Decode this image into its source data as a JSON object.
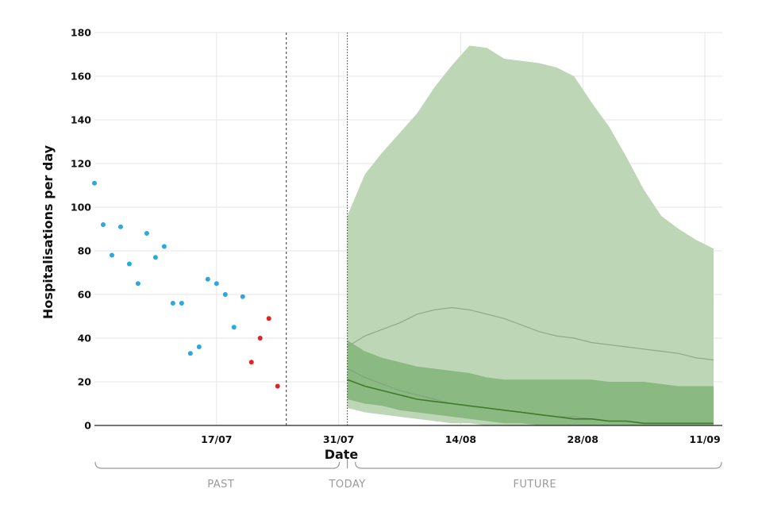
{
  "chart_data": {
    "type": "scatter",
    "xlabel": "Date",
    "ylabel": "Hospitalisations per day",
    "ylim": [
      0,
      180
    ],
    "xlim": [
      "2021-07-03",
      "2021-09-13"
    ],
    "grid": true,
    "x_ticks": [
      {
        "date": "2021-07-17",
        "label": "17/07"
      },
      {
        "date": "2021-07-31",
        "label": "31/07"
      },
      {
        "date": "2021-08-14",
        "label": "14/08"
      },
      {
        "date": "2021-08-28",
        "label": "28/08"
      },
      {
        "date": "2021-09-11",
        "label": "11/09"
      }
    ],
    "y_ticks": [
      0,
      20,
      40,
      60,
      80,
      100,
      120,
      140,
      160,
      180
    ],
    "vertical_lines": [
      {
        "date": "2021-07-25",
        "style": "dashed"
      },
      {
        "date": "2021-08-01",
        "style": "dotted"
      }
    ],
    "periods": [
      {
        "label": "PAST",
        "start": "2021-07-03",
        "end": "2021-08-01"
      },
      {
        "label": "TODAY",
        "start": "2021-08-01",
        "end": "2021-08-01"
      },
      {
        "label": "FUTURE",
        "start": "2021-08-01",
        "end": "2021-09-13"
      }
    ],
    "series": [
      {
        "color": "#29a9df",
        "points": [
          {
            "x": "2021-07-03",
            "y": 111
          },
          {
            "x": "2021-07-04",
            "y": 92
          },
          {
            "x": "2021-07-05",
            "y": 78
          },
          {
            "x": "2021-07-06",
            "y": 91
          },
          {
            "x": "2021-07-07",
            "y": 74
          },
          {
            "x": "2021-07-08",
            "y": 65
          },
          {
            "x": "2021-07-09",
            "y": 88
          },
          {
            "x": "2021-07-10",
            "y": 77
          },
          {
            "x": "2021-07-11",
            "y": 82
          },
          {
            "x": "2021-07-12",
            "y": 56
          },
          {
            "x": "2021-07-13",
            "y": 56
          },
          {
            "x": "2021-07-14",
            "y": 33
          },
          {
            "x": "2021-07-15",
            "y": 36
          },
          {
            "x": "2021-07-16",
            "y": 67
          },
          {
            "x": "2021-07-17",
            "y": 65
          },
          {
            "x": "2021-07-18",
            "y": 60
          },
          {
            "x": "2021-07-19",
            "y": 45
          },
          {
            "x": "2021-07-20",
            "y": 59
          }
        ]
      },
      {
        "color": "#e32228",
        "points": [
          {
            "x": "2021-07-21",
            "y": 29
          },
          {
            "x": "2021-07-22",
            "y": 40
          },
          {
            "x": "2021-07-23",
            "y": 49
          },
          {
            "x": "2021-07-24",
            "y": 18
          }
        ]
      }
    ],
    "forecast": {
      "dates": [
        "2021-08-01",
        "2021-08-03",
        "2021-08-05",
        "2021-08-07",
        "2021-08-09",
        "2021-08-11",
        "2021-08-13",
        "2021-08-15",
        "2021-08-17",
        "2021-08-19",
        "2021-08-21",
        "2021-08-23",
        "2021-08-25",
        "2021-08-27",
        "2021-08-29",
        "2021-08-31",
        "2021-09-02",
        "2021-09-04",
        "2021-09-06",
        "2021-09-08",
        "2021-09-10",
        "2021-09-12"
      ],
      "outer_band": {
        "color": "#bdd6b6",
        "upper": [
          96,
          115,
          125,
          134,
          143,
          155,
          165,
          174,
          173,
          168,
          167,
          166,
          164,
          160,
          148,
          137,
          123,
          108,
          96,
          90,
          85,
          81
        ],
        "lower": [
          8,
          6,
          5,
          4,
          3,
          2,
          1,
          1,
          0,
          0,
          0,
          0,
          0,
          0,
          0,
          0,
          0,
          0,
          0,
          0,
          0,
          0
        ]
      },
      "inner_band": {
        "color": "#8bb982",
        "upper": [
          39,
          34,
          31,
          29,
          27,
          26,
          25,
          24,
          22,
          21,
          21,
          21,
          21,
          21,
          21,
          20,
          20,
          20,
          19,
          18,
          18,
          18
        ],
        "lower": [
          12,
          10,
          9,
          7,
          6,
          5,
          4,
          3,
          2,
          1,
          1,
          0,
          0,
          0,
          0,
          0,
          0,
          0,
          0,
          0,
          0,
          0
        ]
      },
      "upper_line": {
        "color": "#8ea889",
        "values": [
          36,
          41,
          44,
          47,
          51,
          53,
          54,
          53,
          51,
          49,
          46,
          43,
          41,
          40,
          38,
          37,
          36,
          35,
          34,
          33,
          31,
          30
        ]
      },
      "lower_line": {
        "color": "#7fa479",
        "values": [
          26,
          22,
          19,
          16,
          14,
          12,
          10,
          9,
          8,
          7,
          6,
          5,
          4,
          4,
          3,
          2,
          2,
          1,
          1,
          1,
          1,
          1
        ]
      },
      "median_line": {
        "color": "#3f7a2c",
        "values": [
          21,
          18,
          16,
          14,
          12,
          11,
          10,
          9,
          8,
          7,
          6,
          5,
          4,
          3,
          3,
          2,
          2,
          1,
          1,
          1,
          1,
          1
        ]
      }
    }
  }
}
